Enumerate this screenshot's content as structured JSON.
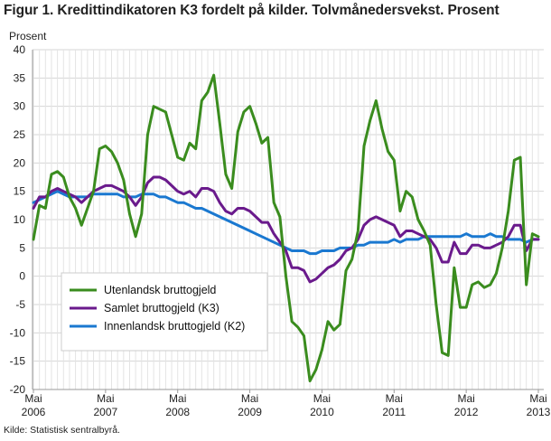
{
  "title": "Figur 1. Kredittindikatoren K3 fordelt på kilder. Tolvmånedersvekst. Prosent",
  "source": "Kilde: Statistisk sentralbyrå.",
  "chart_data": {
    "type": "line",
    "ylabel": "Prosent",
    "ylim": [
      -20,
      40
    ],
    "yticks": [
      40,
      35,
      30,
      25,
      20,
      15,
      10,
      5,
      0,
      -5,
      -10,
      -15,
      -20
    ],
    "xtick_labels": [
      [
        "Mai",
        "2006"
      ],
      [
        "Mai",
        "2007"
      ],
      [
        "Mai",
        "2008"
      ],
      [
        "Mai",
        "2009"
      ],
      [
        "Mai",
        "2010"
      ],
      [
        "Mai",
        "2011"
      ],
      [
        "Mai",
        "2012"
      ],
      [
        "Mai",
        "2013"
      ]
    ],
    "x_start": "2006-05",
    "x_end": "2013-05",
    "grid": true,
    "legend_position": "bottom-left",
    "series": [
      {
        "name": "Utenlandsk bruttogjeld",
        "color": "#3a8c1e",
        "values": [
          6.5,
          12.5,
          12,
          18,
          18.5,
          17.5,
          14,
          12,
          9,
          12,
          15,
          22.5,
          23,
          22,
          20,
          17,
          11,
          7,
          11,
          25,
          30,
          29.5,
          29,
          25,
          21,
          20.5,
          23.5,
          22.5,
          31,
          32.5,
          35.5,
          27,
          18,
          15.5,
          25.5,
          29,
          30,
          27,
          23.5,
          24.5,
          13,
          10.5,
          0,
          -8,
          -9,
          -10.5,
          -18.5,
          -16.5,
          -13,
          -8,
          -9.5,
          -8.5,
          1,
          3,
          8,
          23,
          27.5,
          31,
          26,
          22,
          20.5,
          11.5,
          15,
          14,
          10,
          8,
          5.5,
          -5,
          -13.5,
          -14,
          1.5,
          -5.5,
          -5.5,
          -1.5,
          -1,
          -2,
          -1.5,
          0.5,
          5,
          11.5,
          20.5,
          21,
          -1.5,
          7.5,
          7
        ]
      },
      {
        "name": "Samlet bruttogjeld (K3)",
        "color": "#6a1a8c",
        "values": [
          12,
          14,
          14,
          15,
          15.5,
          15,
          14.5,
          14,
          13,
          14,
          15,
          15.5,
          16,
          16,
          15.5,
          15,
          14,
          12.5,
          14,
          16.5,
          17.5,
          17.5,
          17,
          16,
          15,
          14.5,
          15,
          14,
          15.5,
          15.5,
          15,
          13,
          11.5,
          11,
          12,
          12,
          11.5,
          10.5,
          9.5,
          9.5,
          7.5,
          6,
          4.5,
          1.5,
          1.5,
          1,
          -1,
          -0.5,
          0.5,
          1.5,
          2,
          3,
          4.5,
          5,
          6.5,
          9,
          10,
          10.5,
          10,
          9.5,
          9,
          7,
          8,
          8,
          7.5,
          7,
          6.5,
          5,
          2.5,
          2.5,
          6,
          4,
          4,
          5.5,
          5.5,
          5,
          5,
          5.5,
          6,
          7,
          9,
          9,
          4.5,
          6.5,
          6.5
        ]
      },
      {
        "name": "Innenlandsk bruttogjeld (K2)",
        "color": "#1a78d0",
        "values": [
          13,
          13.5,
          14,
          14.5,
          15,
          14.5,
          14,
          14,
          14,
          14,
          14.5,
          14.5,
          14.5,
          14.5,
          14.5,
          14,
          14,
          14,
          14.5,
          14.5,
          14.5,
          14,
          14,
          13.5,
          13,
          13,
          12.5,
          12,
          12,
          11.5,
          11,
          10.5,
          10,
          9.5,
          9,
          8.5,
          8,
          7.5,
          7,
          6.5,
          6,
          5.5,
          5,
          4.5,
          4.5,
          4.5,
          4,
          4,
          4.5,
          4.5,
          4.5,
          5,
          5,
          5,
          5.5,
          5.5,
          6,
          6,
          6,
          6,
          6.5,
          6,
          6.5,
          6.5,
          6.5,
          7,
          7,
          7,
          7,
          7,
          7,
          7,
          7.5,
          7,
          7,
          7,
          7.5,
          7,
          7,
          6.5,
          6.5,
          6.5,
          6,
          6.5,
          6.5
        ]
      }
    ]
  }
}
